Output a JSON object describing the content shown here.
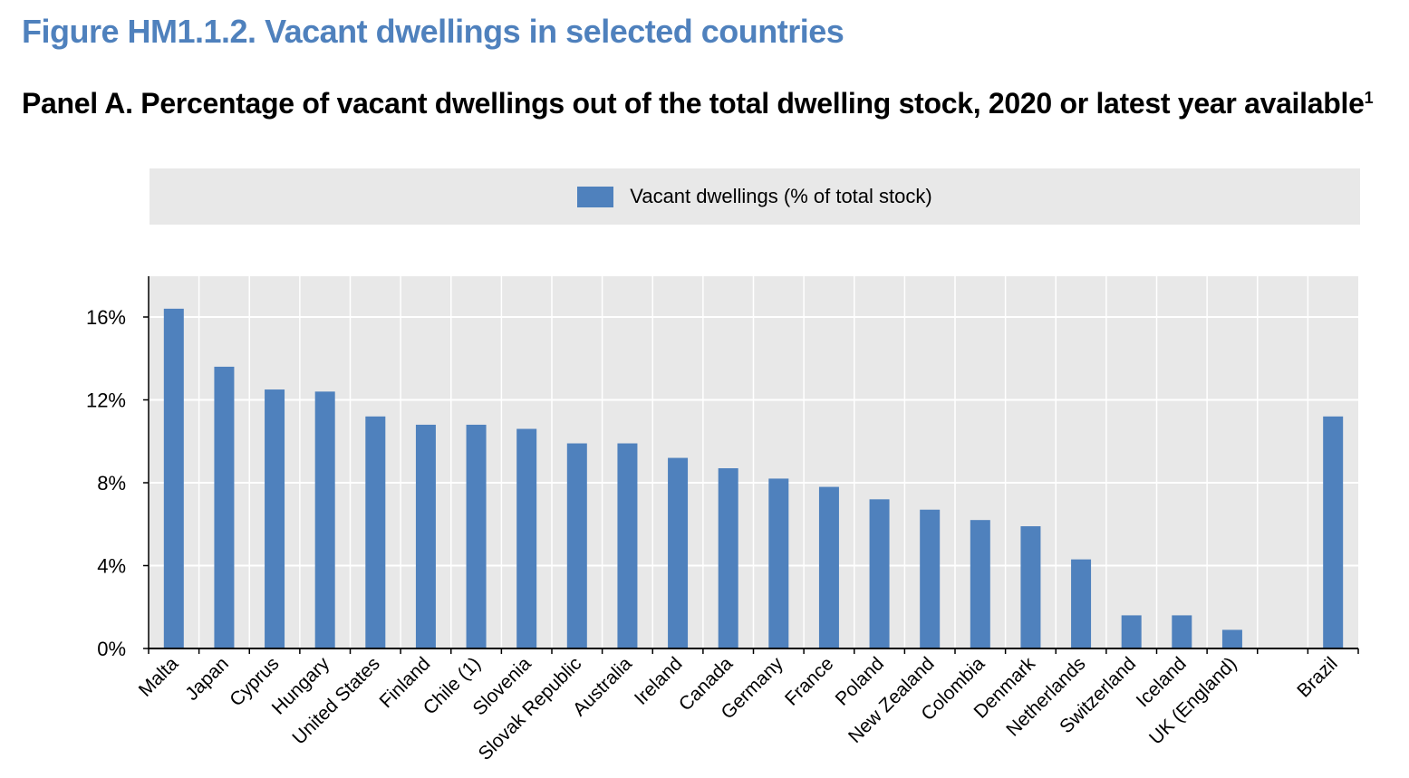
{
  "figure": {
    "title": "Figure HM1.1.2. Vacant dwellings in selected countries",
    "panel_title": "Panel A. Percentage of vacant dwellings out of the total dwelling stock, 2020 or latest year available",
    "panel_note_marker": "1"
  },
  "colors": {
    "bar": "#4f81bd",
    "plot_background": "#e8e8e8",
    "grid": "#ffffff",
    "title": "#4f81bd"
  },
  "chart_data": {
    "type": "bar",
    "title": "Panel A. Percentage of vacant dwellings out of the total dwelling stock, 2020 or latest year available",
    "xlabel": "",
    "ylabel": "",
    "ylim": [
      0,
      18
    ],
    "yticks": [
      0,
      4,
      8,
      12,
      16
    ],
    "ytick_labels": [
      "0%",
      "4%",
      "8%",
      "12%",
      "16%"
    ],
    "grid": true,
    "legend_position": "top-center",
    "categories": [
      "Malta",
      "Japan",
      "Cyprus",
      "Hungary",
      "United States",
      "Finland",
      "Chile (1)",
      "Slovenia",
      "Slovak Republic",
      "Australia",
      "Ireland",
      "Canada",
      "Germany",
      "France",
      "Poland",
      "New Zealand",
      "Colombia",
      "Denmark",
      "Netherlands",
      "Switzerland",
      "Iceland",
      "UK (England)",
      "",
      "Brazil"
    ],
    "series": [
      {
        "name": "Vacant dwellings (% of total stock)",
        "values": [
          16.4,
          13.6,
          12.5,
          12.4,
          11.2,
          10.8,
          10.8,
          10.6,
          9.9,
          9.9,
          9.2,
          8.7,
          8.2,
          7.8,
          7.2,
          6.7,
          6.2,
          5.9,
          4.3,
          1.6,
          1.6,
          0.9,
          null,
          11.2
        ]
      }
    ]
  }
}
